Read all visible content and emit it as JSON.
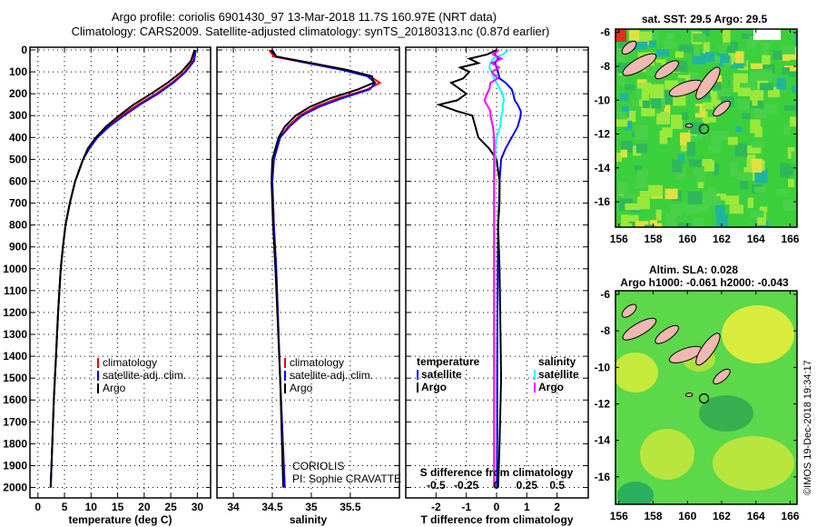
{
  "title_line1": "Argo profile: coriolis 6901430_97 13-Mar-2018 11.7S 160.97E (NRT data)",
  "title_line2": "Climatology: CARS2009. Satellite-adjusted climatology: synTS_20180313.nc (0.87d earlier)",
  "credit": "©IMOS 19-Dec-2018 19:34:17",
  "source_text": "CORIOLIS",
  "pi_text": "PI: Sophie CRAVATTE",
  "colors": {
    "climatology": "#ff0000",
    "satellite": "#0000ff",
    "argo": "#000000",
    "sal_sat": "#00ffff",
    "sal_argo": "#ff00ff",
    "map_green": "#3ccf3c",
    "map_yellow": "#e6f03c",
    "island": "#f0b8b0"
  },
  "chart_data": [
    {
      "type": "line",
      "xlabel": "temperature (deg C)",
      "ylabel": "",
      "xlim": [
        -1.5,
        32.5
      ],
      "ylim": [
        2060,
        0
      ],
      "xticks": [
        "0",
        "5",
        "10",
        "15",
        "20",
        "25",
        "30"
      ],
      "xtick_values": [
        0,
        5,
        10,
        15,
        20,
        25,
        30
      ],
      "yticks": [
        "0",
        "100",
        "200",
        "300",
        "400",
        "500",
        "600",
        "700",
        "800",
        "900",
        "1000",
        "1100",
        "1200",
        "1300",
        "1400",
        "1500",
        "1600",
        "1700",
        "1800",
        "1900",
        "2000"
      ],
      "grid": true,
      "legend": [
        "climatology",
        "satellite-adj. clim.",
        "Argo"
      ],
      "legend_position": "lower-right",
      "depth": [
        0,
        50,
        100,
        150,
        200,
        250,
        300,
        350,
        400,
        450,
        500,
        600,
        700,
        800,
        900,
        1000,
        1200,
        1400,
        1600,
        1800,
        2000
      ],
      "series": [
        {
          "name": "climatology",
          "values": [
            29.6,
            29.2,
            27.6,
            25.2,
            22.2,
            18.8,
            15.8,
            13.2,
            11.1,
            9.6,
            8.5,
            7.0,
            6.0,
            5.2,
            4.7,
            4.3,
            3.8,
            3.4,
            3.0,
            2.7,
            2.4
          ]
        },
        {
          "name": "satellite-adj. clim.",
          "values": [
            29.7,
            29.4,
            27.8,
            25.5,
            22.6,
            19.2,
            16.2,
            13.4,
            11.2,
            9.7,
            8.5,
            7.0,
            6.0,
            5.2,
            4.7,
            4.3,
            3.8,
            3.4,
            3.0,
            2.7,
            2.4
          ]
        },
        {
          "name": "Argo",
          "values": [
            29.5,
            28.8,
            27.0,
            24.4,
            21.3,
            18.0,
            15.3,
            12.8,
            10.9,
            9.4,
            8.5,
            7.0,
            6.0,
            5.2,
            4.7,
            4.3,
            3.8,
            3.4,
            3.0,
            2.7,
            2.4
          ]
        }
      ]
    },
    {
      "type": "line",
      "xlabel": "salinity",
      "xlim": [
        33.79,
        36.13
      ],
      "ylim": [
        2060,
        0
      ],
      "xticks": [
        "34",
        "34.5",
        "35",
        "35.5"
      ],
      "xtick_values": [
        34,
        34.5,
        35,
        35.5
      ],
      "grid": true,
      "legend": [
        "climatology",
        "satellite-adj. clim.",
        "Argo"
      ],
      "legend_position": "lower-right",
      "depth": [
        0,
        30,
        60,
        90,
        120,
        150,
        180,
        220,
        260,
        300,
        350,
        400,
        500,
        600,
        800,
        1000,
        1500,
        2000
      ],
      "series": [
        {
          "name": "climatology",
          "values": [
            34.46,
            34.52,
            34.95,
            35.4,
            35.75,
            35.88,
            35.72,
            35.35,
            35.05,
            34.85,
            34.7,
            34.6,
            34.52,
            34.5,
            34.52,
            34.55,
            34.6,
            34.66
          ]
        },
        {
          "name": "satellite-adj. clim.",
          "values": [
            34.5,
            34.55,
            34.95,
            35.38,
            35.72,
            35.82,
            35.75,
            35.4,
            35.1,
            34.88,
            34.72,
            34.6,
            34.52,
            34.5,
            34.52,
            34.55,
            34.6,
            34.66
          ]
        },
        {
          "name": "Argo",
          "values": [
            34.48,
            34.55,
            35.0,
            35.45,
            35.78,
            35.8,
            35.6,
            35.25,
            34.98,
            34.8,
            34.66,
            34.58,
            34.5,
            34.49,
            34.51,
            34.54,
            34.6,
            34.64
          ]
        }
      ]
    },
    {
      "type": "line",
      "xlabel": "T difference from climatology",
      "xlabel2": "S difference from climatology",
      "xlim": [
        -3.0,
        3.03
      ],
      "ylim": [
        2060,
        0
      ],
      "xticks": [
        "-2",
        "-1",
        "0",
        "1",
        "2"
      ],
      "xtick_values": [
        -2,
        -1,
        0,
        1,
        2
      ],
      "xticks2": [
        "-0.5",
        "-0.25",
        "0",
        "0.25",
        "0.5"
      ],
      "xtick2_values": [
        -0.5,
        -0.25,
        0,
        0.25,
        0.5
      ],
      "grid": true,
      "legend_titles": [
        "temperature",
        "salinity"
      ],
      "legend": [
        "satellite",
        "Argo",
        "satellite",
        "Argo"
      ],
      "depth": [
        0,
        20,
        40,
        60,
        80,
        100,
        130,
        150,
        180,
        200,
        230,
        250,
        280,
        300,
        350,
        400,
        450,
        500,
        600,
        700,
        800,
        1000,
        1200,
        1500,
        1800,
        2000
      ],
      "series": [
        {
          "name": "T satellite",
          "values": [
            0,
            -0.05,
            0.05,
            -0.05,
            0,
            0.05,
            0.1,
            0.3,
            0.5,
            0.55,
            0.6,
            0.7,
            0.8,
            0.8,
            0.7,
            0.5,
            0.3,
            0.15,
            0.1,
            0.08,
            0.05,
            0.04,
            0.03,
            0.02,
            0.02,
            0.01
          ]
        },
        {
          "name": "T Argo",
          "values": [
            0,
            -0.3,
            -0.9,
            -0.6,
            -1.2,
            -0.9,
            -1.1,
            -1.5,
            -1.2,
            -1.0,
            -1.3,
            -1.9,
            -1.3,
            -0.8,
            -0.7,
            -0.6,
            -0.25,
            0.0,
            0.1,
            0.1,
            0.05,
            0.1,
            0.12,
            0.15,
            0.1,
            0.05
          ]
        },
        {
          "name": "S satellite",
          "values": [
            0.1,
            0.05,
            -0.03,
            -0.05,
            -0.06,
            -0.04,
            -0.02,
            0.0,
            0.03,
            0.05,
            0.06,
            0.05,
            0.05,
            0.04,
            0.03,
            0.0,
            -0.01,
            -0.01,
            -0.02,
            -0.02,
            -0.02,
            -0.02,
            -0.02,
            -0.02,
            -0.02,
            -0.02
          ]
        },
        {
          "name": "S Argo",
          "values": [
            0.02,
            -0.03,
            0.04,
            -0.04,
            0.02,
            -0.04,
            0.01,
            -0.05,
            -0.06,
            -0.08,
            -0.1,
            -0.08,
            -0.05,
            -0.05,
            -0.03,
            -0.02,
            -0.02,
            -0.02,
            -0.02,
            -0.02,
            -0.02,
            -0.02,
            -0.02,
            -0.02,
            -0.02,
            -0.02
          ]
        }
      ]
    },
    {
      "type": "heatmap",
      "title": "sat. SST: 29.5 Argo: 29.5",
      "xlim": [
        155.8,
        166.4
      ],
      "ylim": [
        -17.5,
        -5.8
      ],
      "xticks": [
        "156",
        "158",
        "160",
        "162",
        "164",
        "166"
      ],
      "xtick_values": [
        156,
        158,
        160,
        162,
        164,
        166
      ],
      "yticks": [
        "-6",
        "-8",
        "-10",
        "-12",
        "-14",
        "-16"
      ],
      "ytick_values": [
        -6,
        -8,
        -10,
        -12,
        -14,
        -16
      ],
      "argo_position": [
        160.97,
        -11.7
      ]
    },
    {
      "type": "heatmap",
      "title": "Altim. SLA: 0.028",
      "subtitle": "Argo h1000: -0.061 h2000: -0.043",
      "xlim": [
        155.8,
        166.4
      ],
      "ylim": [
        -17.5,
        -5.8
      ],
      "xticks": [
        "156",
        "158",
        "160",
        "162",
        "164",
        "166"
      ],
      "xtick_values": [
        156,
        158,
        160,
        162,
        164,
        166
      ],
      "yticks": [
        "-6",
        "-8",
        "-10",
        "-12",
        "-14",
        "-16"
      ],
      "ytick_values": [
        -6,
        -8,
        -10,
        -12,
        -14,
        -16
      ],
      "argo_position": [
        160.97,
        -11.7
      ]
    }
  ]
}
